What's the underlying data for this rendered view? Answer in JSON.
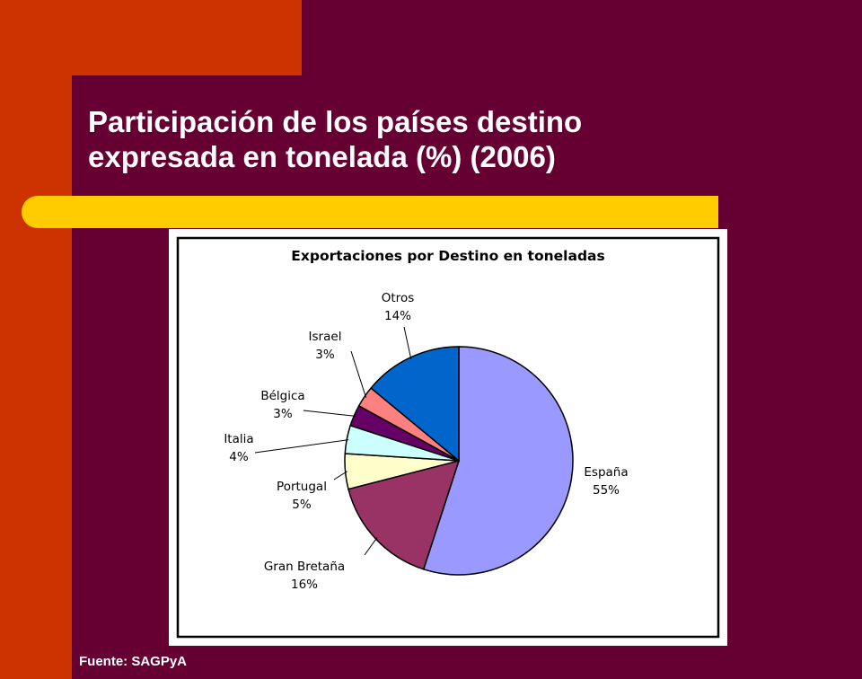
{
  "slide": {
    "title_line1": "Participación de los países destino",
    "title_line2": "expresada en tonelada (%) (2006)",
    "source": "Fuente: SAGPyA"
  },
  "colors": {
    "background": "#660033",
    "accent_left": "#cc3300",
    "accent_bar": "#ffcc00",
    "title_text": "#ffffff"
  },
  "chart_data": {
    "type": "pie",
    "title": "Exportaciones por Destino en toneladas",
    "categories": [
      "España",
      "Gran Bretaña",
      "Portugal",
      "Italia",
      "Bélgica",
      "Israel",
      "Otros"
    ],
    "values": [
      55,
      16,
      5,
      4,
      3,
      3,
      14
    ],
    "value_labels": [
      "55%",
      "16%",
      "5%",
      "4%",
      "3%",
      "3%",
      "14%"
    ],
    "colors": [
      "#9999ff",
      "#993366",
      "#ffffcc",
      "#ccffff",
      "#660066",
      "#ff8080",
      "#0066cc"
    ],
    "legend": "none"
  }
}
